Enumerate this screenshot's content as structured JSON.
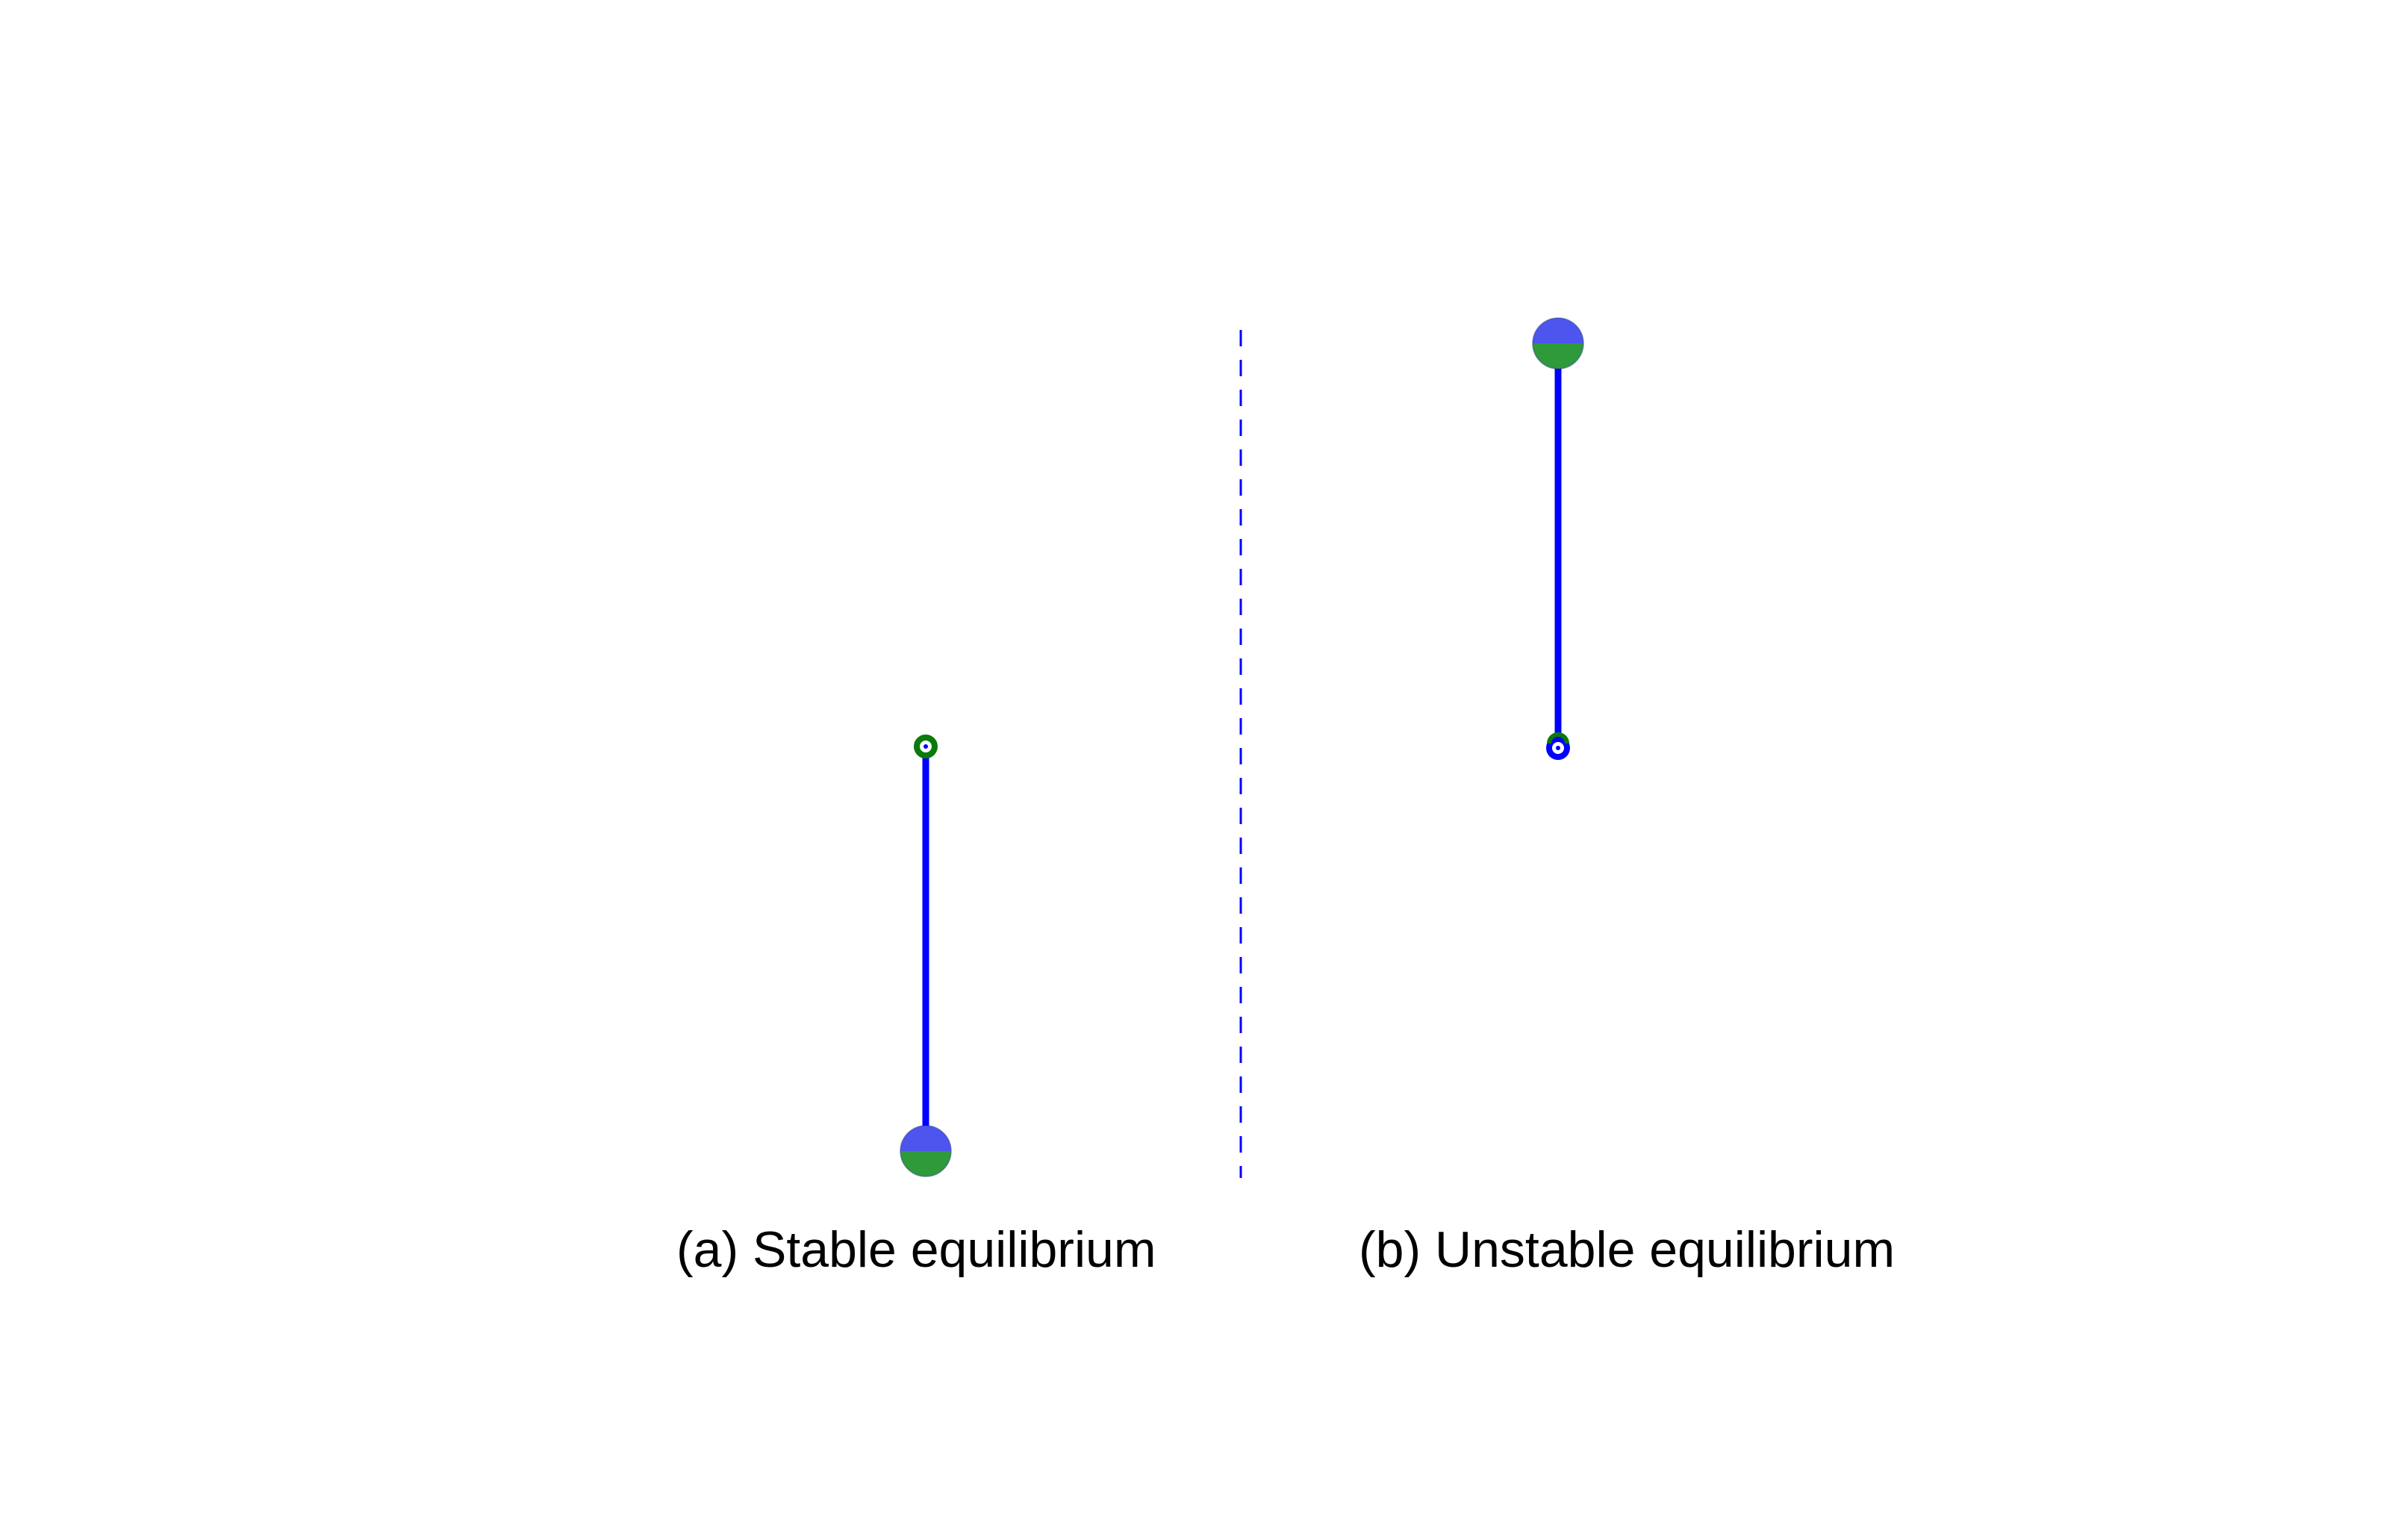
{
  "figure": {
    "panels": [
      {
        "id": "a",
        "caption": "(a) Stable equilibrium",
        "state": "stable",
        "bob_position": "below pivot"
      },
      {
        "id": "b",
        "caption": "(b) Unstable equilibrium",
        "state": "unstable",
        "bob_position": "above pivot"
      }
    ],
    "divider_style": "dashed"
  },
  "colors": {
    "rod": "#0000ff",
    "bob_top": "#4d55ee",
    "bob_bottom": "#2e9a3a",
    "pivot_ring": "#0a7a0a",
    "pivot_ring_alt": "#0000ff",
    "divider": "#0000ff",
    "caption": "#000000",
    "background": "#ffffff"
  }
}
